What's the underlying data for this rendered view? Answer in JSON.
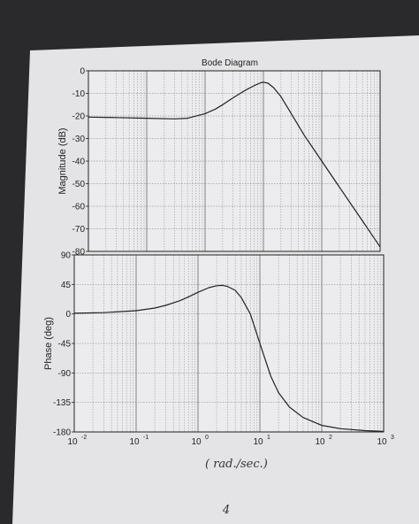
{
  "page": {
    "handwritten_units": "( rad./sec.)",
    "page_number": "4"
  },
  "chart_data": [
    {
      "type": "line",
      "title": "Bode Diagram",
      "xlabel": "",
      "ylabel": "Magnitude (dB)",
      "x_scale": "log",
      "xlim": [
        0.01,
        1000
      ],
      "ylim": [
        -80,
        0
      ],
      "grid": true,
      "y_ticks": [
        "0",
        "-10",
        "-20",
        "-30",
        "-40",
        "-50",
        "-60",
        "-70",
        "-80"
      ],
      "y_tick_values": [
        0,
        -10,
        -20,
        -30,
        -40,
        -50,
        -60,
        -70,
        -80
      ],
      "series": [
        {
          "x": [
            0.01,
            0.03,
            0.1,
            0.3,
            0.5,
            1,
            1.5,
            2,
            3,
            4,
            5,
            7,
            9,
            10,
            12,
            15,
            20,
            30,
            50,
            100,
            200,
            500,
            1000
          ],
          "values": [
            -20.5,
            -20.7,
            -21,
            -21.3,
            -21,
            -19,
            -17,
            -15,
            -12,
            -10,
            -8.5,
            -6.5,
            -5.3,
            -5,
            -5.5,
            -7.5,
            -11.5,
            -19,
            -28.5,
            -40,
            -51.5,
            -66.5,
            -78
          ]
        }
      ]
    },
    {
      "type": "line",
      "xlabel": "",
      "ylabel": "Phase (deg)",
      "x_scale": "log",
      "xlim": [
        0.01,
        1000
      ],
      "ylim": [
        -180,
        90
      ],
      "grid": true,
      "y_ticks": [
        "90",
        "45",
        "0",
        "-45",
        "-90",
        "-135",
        "-180"
      ],
      "y_tick_values": [
        90,
        45,
        0,
        -45,
        -90,
        -135,
        -180
      ],
      "x_ticks": [
        "10^-2",
        "10^-1",
        "10^0",
        "10^1",
        "10^2",
        "10^3"
      ],
      "x_tick_values": [
        0.01,
        0.1,
        1,
        10,
        100,
        1000
      ],
      "series": [
        {
          "x": [
            0.01,
            0.03,
            0.1,
            0.2,
            0.3,
            0.5,
            0.7,
            1,
            1.5,
            2,
            2.5,
            3,
            4,
            5,
            7,
            10,
            15,
            20,
            30,
            50,
            100,
            200,
            500,
            1000
          ],
          "values": [
            1,
            2,
            5,
            9,
            13,
            20,
            26,
            33,
            40,
            43,
            43.5,
            42,
            36,
            25,
            0,
            -45,
            -95,
            -120,
            -142,
            -158,
            -170,
            -175,
            -178,
            -179
          ]
        }
      ]
    }
  ]
}
